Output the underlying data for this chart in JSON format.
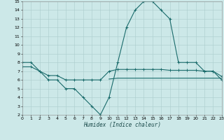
{
  "xlabel": "Humidex (Indice chaleur)",
  "bg_color": "#cce8e8",
  "grid_color": "#aacccc",
  "line_color": "#1a6b6b",
  "xlim": [
    0,
    23
  ],
  "ylim": [
    2,
    15
  ],
  "xticks": [
    0,
    1,
    2,
    3,
    4,
    5,
    6,
    7,
    8,
    9,
    10,
    11,
    12,
    13,
    14,
    15,
    16,
    17,
    18,
    19,
    20,
    21,
    22,
    23
  ],
  "yticks": [
    2,
    3,
    4,
    5,
    6,
    7,
    8,
    9,
    10,
    11,
    12,
    13,
    14,
    15
  ],
  "curve1_x": [
    0,
    1,
    2,
    3,
    4,
    5,
    6,
    7,
    8,
    9,
    10,
    11,
    12,
    13,
    14,
    15,
    16,
    17,
    18,
    19,
    20,
    21,
    22,
    23
  ],
  "curve1_y": [
    8,
    8,
    7,
    6,
    6,
    5,
    5,
    4,
    3,
    2,
    4,
    8,
    12,
    14,
    15,
    15,
    14,
    13,
    8,
    8,
    8,
    7,
    7,
    6
  ],
  "curve2_x": [
    0,
    1,
    2,
    3,
    4,
    5,
    6,
    7,
    8,
    9,
    10,
    11,
    12,
    13,
    14,
    15,
    16,
    17,
    18,
    19,
    20,
    21,
    22,
    23
  ],
  "curve2_y": [
    7.5,
    7.5,
    7.0,
    6.5,
    6.5,
    6.0,
    6.0,
    6.0,
    6.0,
    6.0,
    7.0,
    7.2,
    7.2,
    7.2,
    7.2,
    7.2,
    7.2,
    7.1,
    7.1,
    7.1,
    7.1,
    7.0,
    7.0,
    6.4
  ],
  "curve3_x": [
    10,
    11,
    12,
    13,
    14,
    15,
    16,
    17,
    18,
    19,
    20,
    21,
    22,
    23
  ],
  "curve3_y": [
    6.1,
    6.2,
    6.2,
    6.2,
    6.2,
    6.2,
    6.2,
    6.2,
    6.2,
    6.2,
    6.2,
    6.2,
    6.2,
    6.2
  ]
}
